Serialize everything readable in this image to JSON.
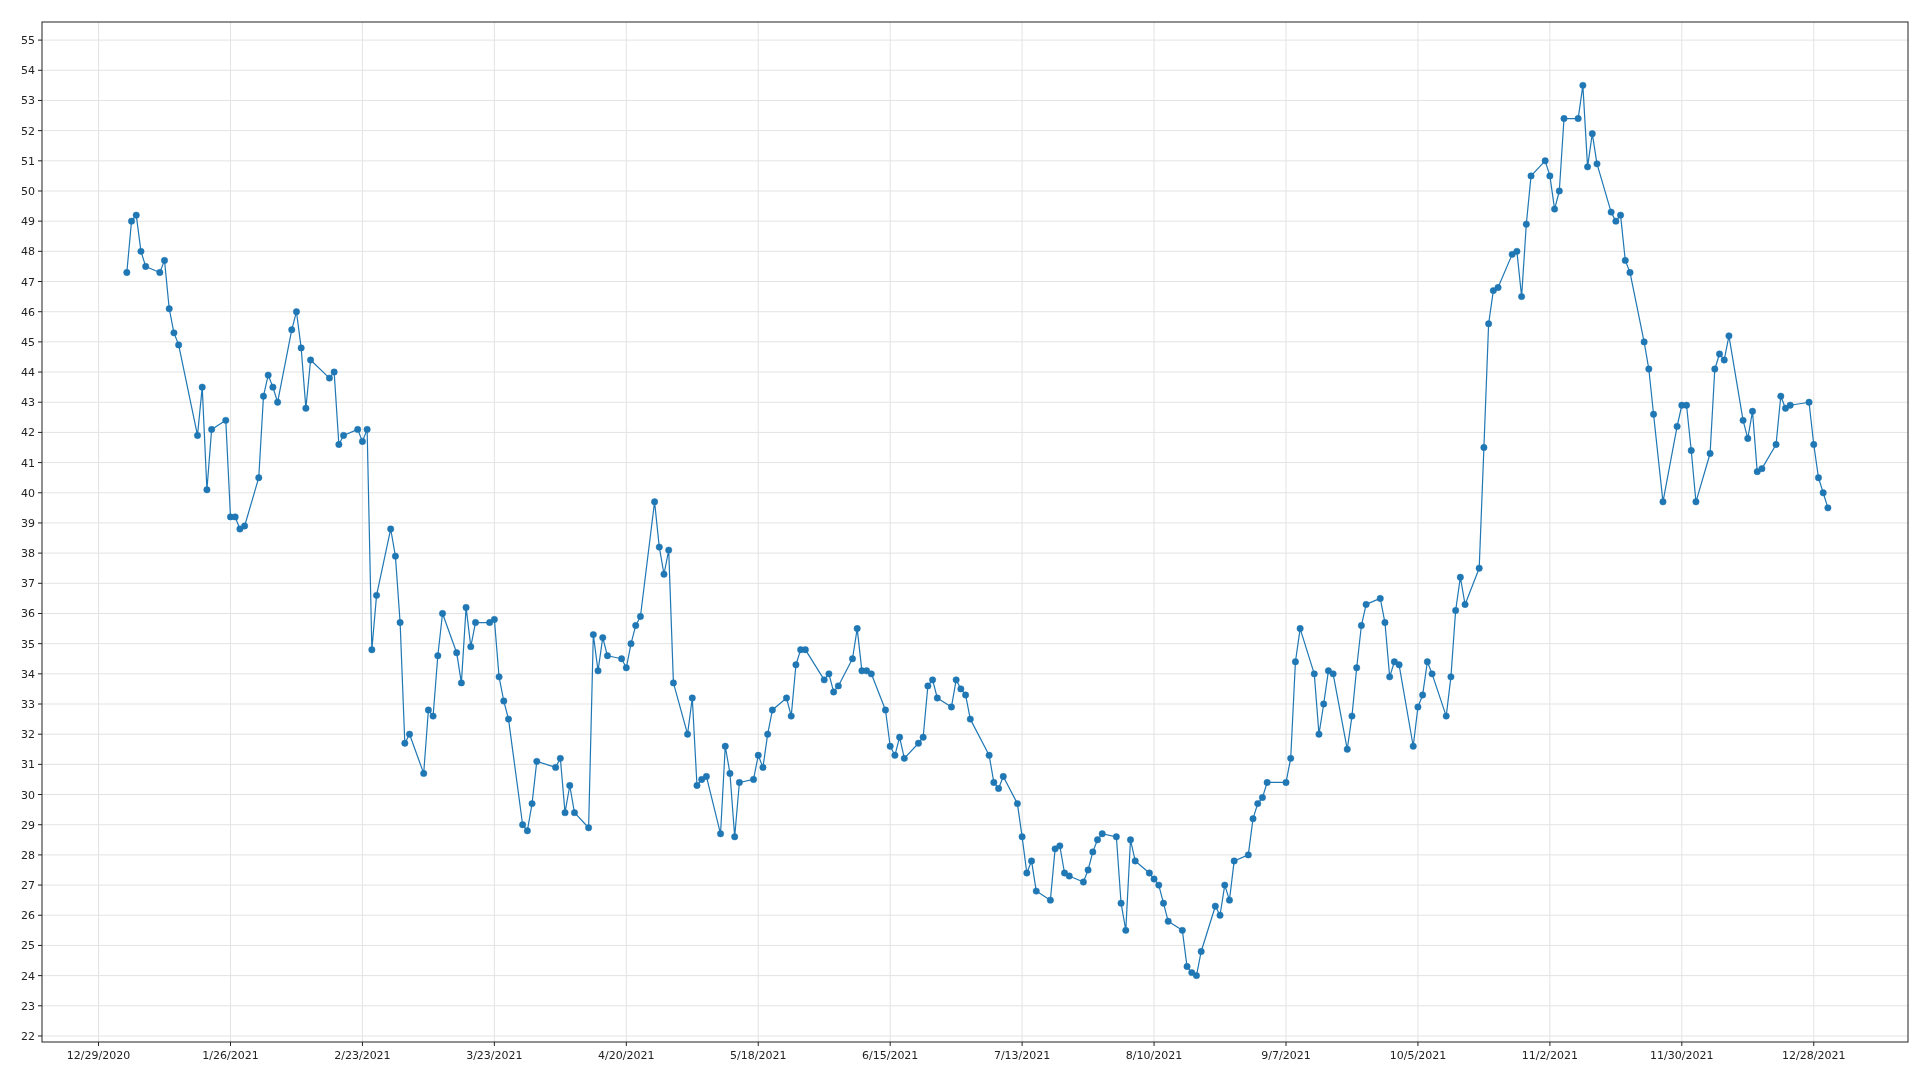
{
  "chart_data": {
    "type": "line",
    "color": "#1f77b4",
    "marker": "circle",
    "line_style": "solid",
    "grid": true,
    "xlim": [
      "2020-12-17",
      "2022-01-17"
    ],
    "ylim": [
      21.8,
      55.6
    ],
    "xticks": [
      {
        "value": "2020-12-29",
        "label": "12/29/2020"
      },
      {
        "value": "2021-01-26",
        "label": "1/26/2021"
      },
      {
        "value": "2021-02-23",
        "label": "2/23/2021"
      },
      {
        "value": "2021-03-23",
        "label": "3/23/2021"
      },
      {
        "value": "2021-04-20",
        "label": "4/20/2021"
      },
      {
        "value": "2021-05-18",
        "label": "5/18/2021"
      },
      {
        "value": "2021-06-15",
        "label": "6/15/2021"
      },
      {
        "value": "2021-07-13",
        "label": "7/13/2021"
      },
      {
        "value": "2021-08-10",
        "label": "8/10/2021"
      },
      {
        "value": "2021-09-07",
        "label": "9/7/2021"
      },
      {
        "value": "2021-10-05",
        "label": "10/5/2021"
      },
      {
        "value": "2021-11-02",
        "label": "11/2/2021"
      },
      {
        "value": "2021-11-30",
        "label": "11/30/2021"
      },
      {
        "value": "2021-12-28",
        "label": "12/28/2021"
      }
    ],
    "yticks": [
      22,
      23,
      24,
      25,
      26,
      27,
      28,
      29,
      30,
      31,
      32,
      33,
      34,
      35,
      36,
      37,
      38,
      39,
      40,
      41,
      42,
      43,
      44,
      45,
      46,
      47,
      48,
      49,
      50,
      51,
      52,
      53,
      54,
      55
    ],
    "x": [
      "2021-01-04",
      "2021-01-05",
      "2021-01-06",
      "2021-01-07",
      "2021-01-08",
      "2021-01-11",
      "2021-01-12",
      "2021-01-13",
      "2021-01-14",
      "2021-01-15",
      "2021-01-19",
      "2021-01-20",
      "2021-01-21",
      "2021-01-22",
      "2021-01-25",
      "2021-01-26",
      "2021-01-27",
      "2021-01-28",
      "2021-01-29",
      "2021-02-01",
      "2021-02-02",
      "2021-02-03",
      "2021-02-04",
      "2021-02-05",
      "2021-02-08",
      "2021-02-09",
      "2021-02-10",
      "2021-02-11",
      "2021-02-12",
      "2021-02-16",
      "2021-02-17",
      "2021-02-18",
      "2021-02-19",
      "2021-02-22",
      "2021-02-23",
      "2021-02-24",
      "2021-02-25",
      "2021-02-26",
      "2021-03-01",
      "2021-03-02",
      "2021-03-03",
      "2021-03-04",
      "2021-03-05",
      "2021-03-08",
      "2021-03-09",
      "2021-03-10",
      "2021-03-11",
      "2021-03-12",
      "2021-03-15",
      "2021-03-16",
      "2021-03-17",
      "2021-03-18",
      "2021-03-19",
      "2021-03-22",
      "2021-03-23",
      "2021-03-24",
      "2021-03-25",
      "2021-03-26",
      "2021-03-29",
      "2021-03-30",
      "2021-03-31",
      "2021-04-01",
      "2021-04-05",
      "2021-04-06",
      "2021-04-07",
      "2021-04-08",
      "2021-04-09",
      "2021-04-12",
      "2021-04-13",
      "2021-04-14",
      "2021-04-15",
      "2021-04-16",
      "2021-04-19",
      "2021-04-20",
      "2021-04-21",
      "2021-04-22",
      "2021-04-23",
      "2021-04-26",
      "2021-04-27",
      "2021-04-28",
      "2021-04-29",
      "2021-04-30",
      "2021-05-03",
      "2021-05-04",
      "2021-05-05",
      "2021-05-06",
      "2021-05-07",
      "2021-05-10",
      "2021-05-11",
      "2021-05-12",
      "2021-05-13",
      "2021-05-14",
      "2021-05-17",
      "2021-05-18",
      "2021-05-19",
      "2021-05-20",
      "2021-05-21",
      "2021-05-24",
      "2021-05-25",
      "2021-05-26",
      "2021-05-27",
      "2021-05-28",
      "2021-06-01",
      "2021-06-02",
      "2021-06-03",
      "2021-06-04",
      "2021-06-07",
      "2021-06-08",
      "2021-06-09",
      "2021-06-10",
      "2021-06-11",
      "2021-06-14",
      "2021-06-15",
      "2021-06-16",
      "2021-06-17",
      "2021-06-18",
      "2021-06-21",
      "2021-06-22",
      "2021-06-23",
      "2021-06-24",
      "2021-06-25",
      "2021-06-28",
      "2021-06-29",
      "2021-06-30",
      "2021-07-01",
      "2021-07-02",
      "2021-07-06",
      "2021-07-07",
      "2021-07-08",
      "2021-07-09",
      "2021-07-12",
      "2021-07-13",
      "2021-07-14",
      "2021-07-15",
      "2021-07-16",
      "2021-07-19",
      "2021-07-20",
      "2021-07-21",
      "2021-07-22",
      "2021-07-23",
      "2021-07-26",
      "2021-07-27",
      "2021-07-28",
      "2021-07-29",
      "2021-07-30",
      "2021-08-02",
      "2021-08-03",
      "2021-08-04",
      "2021-08-05",
      "2021-08-06",
      "2021-08-09",
      "2021-08-10",
      "2021-08-11",
      "2021-08-12",
      "2021-08-13",
      "2021-08-16",
      "2021-08-17",
      "2021-08-18",
      "2021-08-19",
      "2021-08-20",
      "2021-08-23",
      "2021-08-24",
      "2021-08-25",
      "2021-08-26",
      "2021-08-27",
      "2021-08-30",
      "2021-08-31",
      "2021-09-01",
      "2021-09-02",
      "2021-09-03",
      "2021-09-07",
      "2021-09-08",
      "2021-09-09",
      "2021-09-10",
      "2021-09-13",
      "2021-09-14",
      "2021-09-15",
      "2021-09-16",
      "2021-09-17",
      "2021-09-20",
      "2021-09-21",
      "2021-09-22",
      "2021-09-23",
      "2021-09-24",
      "2021-09-27",
      "2021-09-28",
      "2021-09-29",
      "2021-09-30",
      "2021-10-01",
      "2021-10-04",
      "2021-10-05",
      "2021-10-06",
      "2021-10-07",
      "2021-10-08",
      "2021-10-11",
      "2021-10-12",
      "2021-10-13",
      "2021-10-14",
      "2021-10-15",
      "2021-10-18",
      "2021-10-19",
      "2021-10-20",
      "2021-10-21",
      "2021-10-22",
      "2021-10-25",
      "2021-10-26",
      "2021-10-27",
      "2021-10-28",
      "2021-10-29",
      "2021-11-01",
      "2021-11-02",
      "2021-11-03",
      "2021-11-04",
      "2021-11-05",
      "2021-11-08",
      "2021-11-09",
      "2021-11-10",
      "2021-11-11",
      "2021-11-12",
      "2021-11-15",
      "2021-11-16",
      "2021-11-17",
      "2021-11-18",
      "2021-11-19",
      "2021-11-22",
      "2021-11-23",
      "2021-11-24",
      "2021-11-26",
      "2021-11-29",
      "2021-11-30",
      "2021-12-01",
      "2021-12-02",
      "2021-12-03",
      "2021-12-06",
      "2021-12-07",
      "2021-12-08",
      "2021-12-09",
      "2021-12-10",
      "2021-12-13",
      "2021-12-14",
      "2021-12-15",
      "2021-12-16",
      "2021-12-17",
      "2021-12-20",
      "2021-12-21",
      "2021-12-22",
      "2021-12-23",
      "2021-12-27",
      "2021-12-28",
      "2021-12-29",
      "2021-12-30",
      "2021-12-31"
    ],
    "values": [
      47.3,
      49.0,
      49.2,
      48.0,
      47.5,
      47.3,
      47.7,
      46.1,
      45.3,
      44.9,
      41.9,
      43.5,
      40.1,
      42.1,
      42.4,
      39.2,
      39.2,
      38.8,
      38.9,
      40.5,
      43.2,
      43.9,
      43.5,
      43.0,
      45.4,
      46.0,
      44.8,
      42.8,
      44.4,
      43.8,
      44.0,
      41.6,
      41.9,
      42.1,
      41.7,
      42.1,
      34.8,
      36.6,
      38.8,
      37.9,
      35.7,
      31.7,
      32.0,
      30.7,
      32.8,
      32.6,
      34.6,
      36.0,
      34.7,
      33.7,
      36.2,
      34.9,
      35.7,
      35.7,
      35.8,
      33.9,
      33.1,
      32.5,
      29.0,
      28.8,
      29.7,
      31.1,
      30.9,
      31.2,
      29.4,
      30.3,
      29.4,
      28.9,
      35.3,
      34.1,
      35.2,
      34.6,
      34.5,
      34.2,
      35.0,
      35.6,
      35.9,
      39.7,
      38.2,
      37.3,
      38.1,
      33.7,
      32.0,
      33.2,
      30.3,
      30.5,
      30.6,
      28.7,
      31.6,
      30.7,
      28.6,
      30.4,
      30.5,
      31.3,
      30.9,
      32.0,
      32.8,
      33.2,
      32.6,
      34.3,
      34.8,
      34.8,
      33.8,
      34.0,
      33.4,
      33.6,
      34.5,
      35.5,
      34.1,
      34.1,
      34.0,
      32.8,
      31.6,
      31.3,
      31.9,
      31.2,
      31.7,
      31.9,
      33.6,
      33.8,
      33.2,
      32.9,
      33.8,
      33.5,
      33.3,
      32.5,
      31.3,
      30.4,
      30.2,
      30.6,
      29.7,
      28.6,
      27.4,
      27.8,
      26.8,
      26.5,
      28.2,
      28.3,
      27.4,
      27.3,
      27.1,
      27.5,
      28.1,
      28.5,
      28.7,
      28.6,
      26.4,
      25.5,
      28.5,
      27.8,
      27.4,
      27.2,
      27.0,
      26.4,
      25.8,
      25.5,
      24.3,
      24.1,
      24.0,
      24.8,
      26.3,
      26.0,
      27.0,
      26.5,
      27.8,
      28.0,
      29.2,
      29.7,
      29.9,
      30.4,
      30.4,
      31.2,
      34.4,
      35.5,
      34.0,
      32.0,
      33.0,
      34.1,
      34.0,
      31.5,
      32.6,
      34.2,
      35.6,
      36.3,
      36.5,
      35.7,
      33.9,
      34.4,
      34.3,
      31.6,
      32.9,
      33.3,
      34.4,
      34.0,
      32.6,
      33.9,
      36.1,
      37.2,
      36.3,
      37.5,
      41.5,
      45.6,
      46.7,
      46.8,
      47.9,
      48.0,
      46.5,
      48.9,
      50.5,
      51.0,
      50.5,
      49.4,
      50.0,
      52.4,
      52.4,
      53.5,
      50.8,
      51.9,
      50.9,
      49.3,
      49.0,
      49.2,
      47.7,
      47.3,
      45.0,
      44.1,
      42.6,
      39.7,
      42.2,
      42.9,
      42.9,
      41.4,
      39.7,
      41.3,
      44.1,
      44.6,
      44.4,
      45.2,
      42.4,
      41.8,
      42.7,
      40.7,
      40.8,
      41.6,
      43.2,
      42.8,
      42.9,
      43.0,
      41.6,
      40.5,
      40.0,
      39.5
    ]
  }
}
